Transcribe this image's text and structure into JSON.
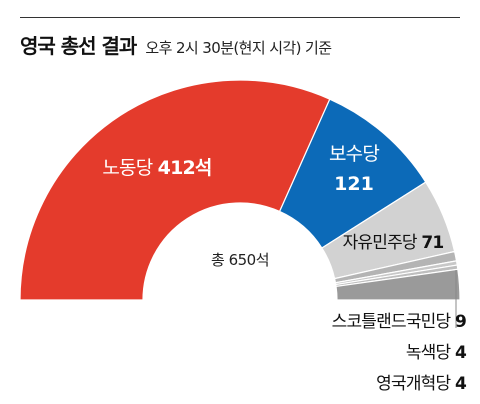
{
  "title": "영국 총선 결과",
  "subtitle": "오후 2시 30분(현지 시각) 기준",
  "center_label": "총 650석",
  "chart_data": {
    "type": "semicircle-pie",
    "total": 650,
    "slices": [
      {
        "name": "노동당",
        "value": 412,
        "color": "#e43b2c"
      },
      {
        "name": "보수당",
        "value": 121,
        "color": "#0c6ab8"
      },
      {
        "name": "자유민주당",
        "value": 71,
        "color": "#d2d2d2"
      },
      {
        "name": "스코틀랜드국민당",
        "value": 9,
        "color": "#b4b4b4"
      },
      {
        "name": "녹색당",
        "value": 4,
        "color": "#c8c8c8"
      },
      {
        "name": "영국개혁당",
        "value": 4,
        "color": "#bebebe"
      },
      {
        "name": "",
        "value": 29,
        "color": "#9a9a9a"
      }
    ],
    "labels": {
      "labour": {
        "party": "노동당",
        "seats": "412석"
      },
      "conservative": {
        "party": "보수당",
        "seats": "121"
      },
      "libdem": {
        "party": "자유민주당",
        "seats": "71"
      },
      "snp": {
        "party": "스코틀랜드국민당",
        "seats": "9"
      },
      "green": {
        "party": "녹색당",
        "seats": "4"
      },
      "reform": {
        "party": "영국개혁당",
        "seats": "4"
      }
    }
  }
}
